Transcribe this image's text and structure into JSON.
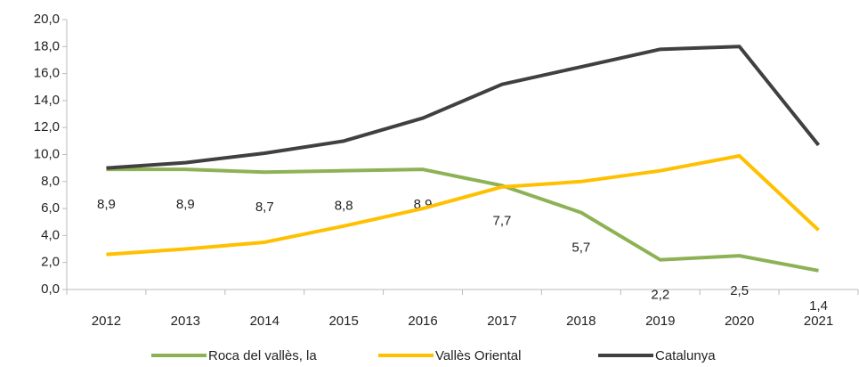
{
  "chart_data": {
    "type": "line",
    "categories": [
      "2012",
      "2013",
      "2014",
      "2015",
      "2016",
      "2017",
      "2018",
      "2019",
      "2020",
      "2021"
    ],
    "series": [
      {
        "name": "Roca del vallès, la",
        "color": "#8db255",
        "values": [
          8.9,
          8.9,
          8.7,
          8.8,
          8.9,
          7.7,
          5.7,
          2.2,
          2.5,
          1.4
        ],
        "value_labels": [
          "8,9",
          "8,9",
          "8,7",
          "8,8",
          "8,9",
          "7,7",
          "5,7",
          "2,2",
          "2,5",
          "1,4"
        ]
      },
      {
        "name": "Vallès Oriental",
        "color": "#ffc000",
        "values": [
          2.6,
          3.0,
          3.5,
          4.7,
          6.0,
          7.6,
          8.0,
          8.8,
          9.9,
          4.4
        ]
      },
      {
        "name": "Catalunya",
        "color": "#404040",
        "values": [
          9.0,
          9.4,
          10.1,
          11.0,
          12.7,
          15.2,
          16.5,
          17.8,
          18.0,
          10.7
        ]
      }
    ],
    "ylim": [
      0,
      20
    ],
    "yticks": [
      {
        "value": 0,
        "label": "0,0"
      },
      {
        "value": 2,
        "label": "2,0"
      },
      {
        "value": 4,
        "label": "4,0"
      },
      {
        "value": 6,
        "label": "6,0"
      },
      {
        "value": 8,
        "label": "8,0"
      },
      {
        "value": 10,
        "label": "10,0"
      },
      {
        "value": 12,
        "label": "12,0"
      },
      {
        "value": 14,
        "label": "14,0"
      },
      {
        "value": 16,
        "label": "16,0"
      },
      {
        "value": 18,
        "label": "18,0"
      },
      {
        "value": 20,
        "label": "20,0"
      }
    ],
    "legend": "bottom"
  }
}
